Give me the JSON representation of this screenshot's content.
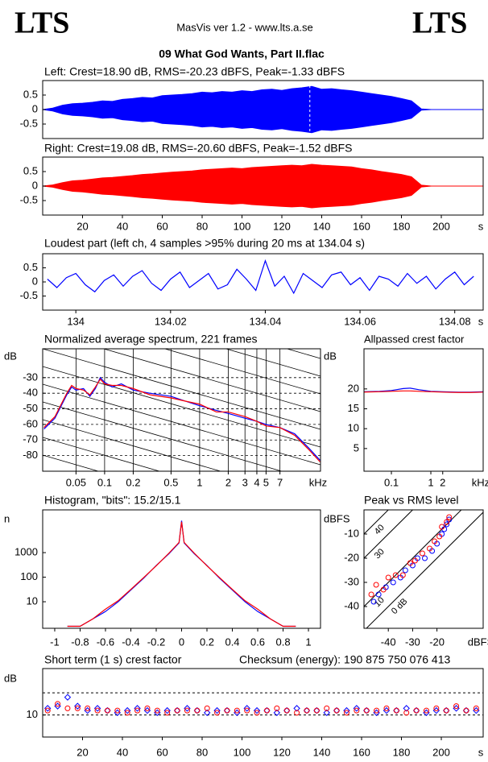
{
  "header": {
    "logo_left": "LTS",
    "logo_right": "LTS",
    "version": "MasVis ver 1.2 - www.lts.a.se",
    "file": "09 What God Wants, Part II.flac"
  },
  "chart_data": [
    {
      "type": "waveform",
      "title": "Left: Crest=18.90 dB, RMS=-20.23 dBFS, Peak=-1.33 dBFS",
      "color": "#0000ff",
      "x": [
        0,
        5,
        10,
        15,
        20,
        25,
        30,
        35,
        40,
        45,
        50,
        55,
        60,
        65,
        70,
        75,
        80,
        85,
        90,
        95,
        100,
        105,
        110,
        115,
        120,
        125,
        130,
        135,
        140,
        145,
        150,
        155,
        160,
        165,
        170,
        175,
        180,
        185,
        190,
        195,
        200,
        205,
        210,
        215,
        220
      ],
      "values": [
        0,
        0.05,
        0.15,
        0.2,
        0.22,
        0.25,
        0.3,
        0.28,
        0.35,
        0.38,
        0.42,
        0.4,
        0.48,
        0.5,
        0.52,
        0.55,
        0.6,
        0.58,
        0.62,
        0.6,
        0.65,
        0.62,
        0.68,
        0.7,
        0.66,
        0.72,
        0.75,
        0.8,
        0.7,
        0.72,
        0.68,
        0.65,
        0.6,
        0.55,
        0.5,
        0.45,
        0.38,
        0.3,
        0.02,
        0,
        0,
        0,
        0,
        0,
        0
      ],
      "marker_x": 134.04,
      "xlim": [
        0,
        221
      ],
      "ylim": [
        -1,
        1
      ],
      "yticks": [
        0.5,
        0,
        -0.5
      ]
    },
    {
      "type": "waveform",
      "title": "Right: Crest=19.08 dB, RMS=-20.60 dBFS, Peak=-1.52 dBFS",
      "color": "#ff0000",
      "x": [
        0,
        5,
        10,
        15,
        20,
        25,
        30,
        35,
        40,
        45,
        50,
        55,
        60,
        65,
        70,
        75,
        80,
        85,
        90,
        95,
        100,
        105,
        110,
        115,
        120,
        125,
        130,
        135,
        140,
        145,
        150,
        155,
        160,
        165,
        170,
        175,
        180,
        185,
        190,
        195,
        200,
        205,
        210,
        215,
        220
      ],
      "values": [
        0,
        0.04,
        0.12,
        0.18,
        0.2,
        0.24,
        0.28,
        0.3,
        0.33,
        0.36,
        0.4,
        0.42,
        0.45,
        0.48,
        0.5,
        0.52,
        0.56,
        0.58,
        0.6,
        0.62,
        0.6,
        0.64,
        0.66,
        0.68,
        0.7,
        0.72,
        0.7,
        0.75,
        0.72,
        0.7,
        0.68,
        0.66,
        0.6,
        0.56,
        0.5,
        0.45,
        0.4,
        0.32,
        0.03,
        0,
        0,
        0,
        0,
        0,
        0
      ],
      "xlim": [
        0,
        221
      ],
      "ylim": [
        -1,
        1
      ],
      "yticks": [
        0.5,
        0,
        -0.5
      ],
      "xticks": [
        20,
        40,
        60,
        80,
        100,
        120,
        140,
        160,
        180,
        200
      ],
      "xlabel": "s"
    },
    {
      "type": "line",
      "title": "Loudest part (left  ch, 4 samples >95% during 20 ms at 134.04 s)",
      "x": [
        133.994,
        133.996,
        133.998,
        134,
        134.002,
        134.004,
        134.006,
        134.008,
        134.01,
        134.012,
        134.014,
        134.016,
        134.018,
        134.02,
        134.022,
        134.024,
        134.026,
        134.028,
        134.03,
        134.032,
        134.034,
        134.036,
        134.038,
        134.04,
        134.042,
        134.044,
        134.046,
        134.048,
        134.05,
        134.052,
        134.054,
        134.056,
        134.058,
        134.06,
        134.062,
        134.064,
        134.066,
        134.068,
        134.07,
        134.072,
        134.074,
        134.076,
        134.078,
        134.08,
        134.082,
        134.084
      ],
      "series": [
        {
          "color": "#0000ff",
          "values": [
            0.1,
            -0.2,
            0.15,
            0.3,
            -0.1,
            -0.35,
            0.05,
            0.25,
            -0.15,
            0.2,
            0.4,
            -0.05,
            -0.3,
            0.1,
            0.35,
            -0.2,
            0.05,
            0.3,
            -0.25,
            -0.1,
            0.45,
            0.1,
            -0.3,
            0.75,
            -0.15,
            0.2,
            -0.4,
            0.3,
            0.05,
            -0.2,
            0.25,
            0.35,
            -0.1,
            0.15,
            -0.3,
            0.2,
            0.1,
            -0.15,
            0.3,
            -0.05,
            0.2,
            -0.25,
            0.1,
            0.35,
            -0.1,
            0.2
          ]
        }
      ],
      "xlim": [
        133.993,
        134.086
      ],
      "ylim": [
        -1,
        1
      ],
      "yticks": [
        0.5,
        0,
        -0.5
      ],
      "xticks": [
        134,
        134.02,
        134.04,
        134.06,
        134.08
      ],
      "xlabel": "s"
    },
    {
      "type": "line",
      "title": "Normalized average spectrum, 221 frames",
      "ylabel": "dB",
      "log_x": true,
      "grid": true,
      "x": [
        0.023,
        0.03,
        0.04,
        0.045,
        0.05,
        0.06,
        0.07,
        0.08,
        0.09,
        0.1,
        0.12,
        0.15,
        0.2,
        0.3,
        0.5,
        0.7,
        1,
        1.5,
        2,
        3,
        4,
        5,
        7,
        10,
        14,
        18.5
      ],
      "series": [
        {
          "color": "#0000ff",
          "values": [
            -63,
            -56,
            -41,
            -36,
            -38,
            -37,
            -42,
            -37,
            -30,
            -33,
            -36,
            -34,
            -38,
            -40,
            -42,
            -45,
            -48,
            -51,
            -53,
            -56,
            -58,
            -60,
            -62,
            -66,
            -75,
            -83
          ]
        },
        {
          "color": "#ff0000",
          "values": [
            -62,
            -55,
            -40,
            -35,
            -37,
            -38,
            -41,
            -36,
            -31,
            -34,
            -35,
            -35,
            -37,
            -41,
            -43,
            -45,
            -47,
            -52,
            -52,
            -55,
            -58,
            -61,
            -62,
            -67,
            -76,
            -84
          ]
        }
      ],
      "xlim": [
        0.0223,
        18.7
      ],
      "ylim": [
        -90,
        -11.5
      ],
      "yticks": [
        -30,
        -40,
        -50,
        -60,
        -70,
        -80
      ],
      "xticks": [
        0.05,
        0.1,
        0.2,
        0.5,
        1,
        2,
        3,
        4,
        5,
        7
      ],
      "xlabel": "kHz"
    },
    {
      "type": "line",
      "title": "Allpassed crest factor",
      "ylabel": "dB",
      "log_x": true,
      "x": [
        0.02,
        0.05,
        0.1,
        0.2,
        0.3,
        0.5,
        1,
        2,
        5,
        10,
        21
      ],
      "series": [
        {
          "color": "#0000ff",
          "values": [
            19.3,
            19.4,
            19.6,
            20.1,
            20.2,
            19.8,
            19.4,
            19.3,
            19.2,
            19.2,
            19.3
          ]
        },
        {
          "color": "#ff0000",
          "values": [
            19.2,
            19.3,
            19.4,
            19.5,
            19.5,
            19.4,
            19.3,
            19.2,
            19.1,
            19.1,
            19.2
          ]
        }
      ],
      "xlim": [
        0.0202,
        21.2
      ],
      "ylim": [
        -0.7,
        30.1
      ],
      "yticks": [
        20,
        15,
        10,
        5
      ],
      "xticks": [
        0.1,
        1,
        2
      ],
      "xlabel": "kHz"
    },
    {
      "type": "line",
      "title": "Histogram, \"bits\": 15.2/15.1",
      "ylabel": "n",
      "log_y": true,
      "x": [
        -0.9,
        -0.8,
        -0.7,
        -0.6,
        -0.5,
        -0.4,
        -0.3,
        -0.2,
        -0.1,
        -0.02,
        0,
        0.02,
        0.1,
        0.2,
        0.3,
        0.4,
        0.5,
        0.6,
        0.7,
        0.8,
        0.9
      ],
      "series": [
        {
          "color": "#0000ff",
          "values": [
            1,
            1,
            2,
            4,
            10,
            30,
            90,
            300,
            900,
            2500,
            20000,
            2500,
            900,
            300,
            90,
            30,
            10,
            4,
            2,
            1,
            1
          ]
        },
        {
          "color": "#ff0000",
          "values": [
            1,
            1,
            2,
            5,
            11,
            32,
            95,
            290,
            950,
            2600,
            18000,
            2600,
            950,
            290,
            95,
            32,
            11,
            5,
            2,
            1,
            1
          ]
        }
      ],
      "xlim": [
        -1.095,
        1.095
      ],
      "ylim": [
        0.83,
        55000
      ],
      "yticks": [
        10,
        100,
        1000
      ],
      "xticks": [
        -1,
        -0.8,
        -0.6,
        -0.4,
        -0.2,
        0,
        0.2,
        0.4,
        0.6,
        0.8,
        1
      ]
    },
    {
      "type": "scatter",
      "title": "Peak vs RMS level",
      "ylabel": "dBFS",
      "series": [
        {
          "color": "#0000ff",
          "marker": "circle",
          "x": [
            -46,
            -44,
            -41,
            -38,
            -35,
            -33,
            -30,
            -28,
            -25,
            -22,
            -20,
            -18,
            -17,
            -16,
            -15
          ],
          "values": [
            -38,
            -35,
            -32,
            -30,
            -28,
            -25,
            -23,
            -20,
            -20,
            -17,
            -14,
            -10,
            -8,
            -6,
            -4
          ]
        },
        {
          "color": "#ff0000",
          "marker": "circle",
          "x": [
            -47,
            -45,
            -42,
            -40,
            -37,
            -34,
            -31,
            -29,
            -26,
            -23,
            -21,
            -19,
            -18,
            -16,
            -15
          ],
          "values": [
            -35,
            -31,
            -33,
            -28,
            -27,
            -27,
            -22,
            -21,
            -18,
            -16,
            -13,
            -11,
            -7,
            -5,
            -3
          ]
        }
      ],
      "crest_lines": [
        {
          "value": 0,
          "label": "0 dB"
        },
        10,
        30,
        40
      ],
      "xlim": [
        -50,
        -1
      ],
      "ylim": [
        -49,
        0
      ],
      "yticks": [
        -10,
        -20,
        -30,
        -40
      ],
      "xticks": [
        -40,
        -30,
        -20
      ],
      "xlabel": "dBFS"
    },
    {
      "type": "scatter",
      "title": "Short term (1 s) crest factor",
      "annotation": "Checksum (energy):  190 875 750 076 413",
      "ylabel": "dB",
      "x": [
        2.5,
        7.5,
        12.5,
        17.5,
        22.5,
        27.5,
        32.5,
        37.5,
        42.5,
        47.5,
        52.5,
        57.5,
        62.5,
        67.5,
        72.5,
        77.5,
        82.5,
        87.5,
        92.5,
        97.5,
        102.5,
        107.5,
        112.5,
        117.5,
        122.5,
        127.5,
        132.5,
        137.5,
        142.5,
        147.5,
        152.5,
        157.5,
        162.5,
        167.5,
        172.5,
        177.5,
        182.5,
        187.5,
        192.5,
        197.5,
        202.5,
        207.5,
        212.5,
        217.5
      ],
      "series": [
        {
          "color": "#0000ff",
          "marker": "diamond",
          "values": [
            13,
            14,
            18,
            14,
            12,
            13,
            12,
            11,
            12,
            13,
            12,
            11,
            12,
            12,
            13,
            12,
            11,
            12,
            12,
            11,
            13,
            12,
            12,
            11,
            12,
            13,
            12,
            12,
            11,
            12,
            12,
            13,
            12,
            11,
            12,
            12,
            13,
            12,
            11,
            12,
            12,
            13,
            12,
            12
          ]
        },
        {
          "color": "#ff0000",
          "marker": "circle",
          "values": [
            12,
            15,
            13,
            13,
            13,
            12,
            12,
            12,
            11,
            12,
            13,
            12,
            11,
            12,
            12,
            12,
            13,
            11,
            12,
            12,
            12,
            11,
            12,
            13,
            12,
            11,
            12,
            12,
            13,
            12,
            11,
            12,
            12,
            12,
            13,
            12,
            11,
            12,
            12,
            13,
            12,
            14,
            12,
            13
          ]
        }
      ],
      "hlines": [
        10,
        20
      ],
      "xlim": [
        0,
        221
      ],
      "ylim": [
        0,
        31
      ],
      "yticks": [
        10
      ],
      "xticks": [
        20,
        40,
        60,
        80,
        100,
        120,
        140,
        160,
        180,
        200
      ],
      "xlabel": "s"
    }
  ]
}
